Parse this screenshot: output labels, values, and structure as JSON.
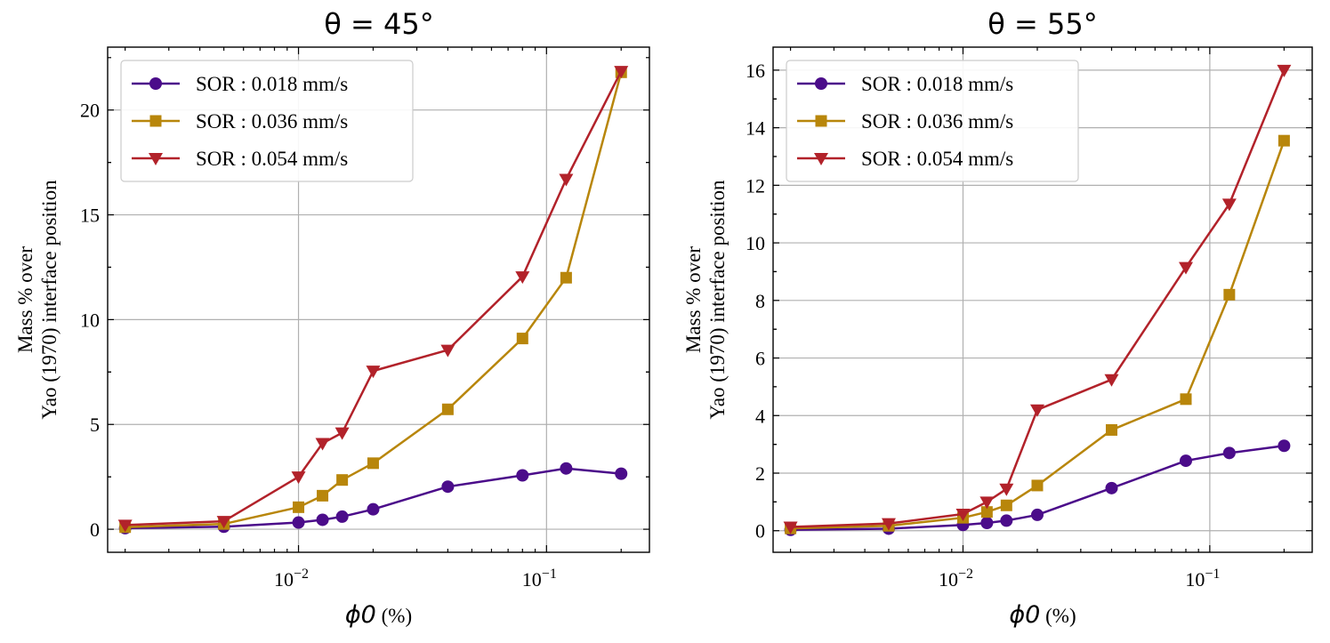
{
  "chart_data": [
    {
      "type": "line",
      "title": "θ = 45°",
      "xlabel": "ϕ0 (%)",
      "ylabel": [
        "Mass % over",
        "Yao (1970) interface position"
      ],
      "xscale": "log",
      "xlim": [
        0.0017,
        0.26
      ],
      "ylim": [
        -1.1,
        23.0
      ],
      "xticks": [
        {
          "value": 0.01,
          "base": "10",
          "exp": "−2"
        },
        {
          "value": 0.1,
          "base": "10",
          "exp": "−1"
        }
      ],
      "yticks": [
        0,
        5,
        10,
        15,
        20
      ],
      "legend_position": "upper-left",
      "x": [
        0.002,
        0.005,
        0.01,
        0.0125,
        0.015,
        0.02,
        0.04,
        0.08,
        0.12,
        0.2
      ],
      "series": [
        {
          "name": "SOR : 0.018 mm/s",
          "color": "#4b0c8a",
          "marker": "circle",
          "values": [
            0.05,
            0.12,
            0.32,
            0.45,
            0.6,
            0.95,
            2.03,
            2.57,
            2.9,
            2.65
          ]
        },
        {
          "name": "SOR : 0.036 mm/s",
          "color": "#b8860b",
          "marker": "square",
          "values": [
            0.1,
            0.25,
            1.05,
            1.6,
            2.35,
            3.15,
            5.72,
            9.1,
            12.0,
            21.8
          ]
        },
        {
          "name": "SOR : 0.054 mm/s",
          "color": "#b2222a",
          "marker": "triangle-down",
          "values": [
            0.2,
            0.38,
            2.5,
            4.1,
            4.6,
            7.55,
            8.55,
            12.05,
            16.7,
            21.85
          ]
        }
      ]
    },
    {
      "type": "line",
      "title": "θ = 55°",
      "xlabel": "ϕ0 (%)",
      "ylabel": [
        "Mass % over",
        "Yao (1970) interface position"
      ],
      "xscale": "log",
      "xlim": [
        0.0017,
        0.26
      ],
      "ylim": [
        -0.75,
        16.8
      ],
      "xticks": [
        {
          "value": 0.01,
          "base": "10",
          "exp": "−2"
        },
        {
          "value": 0.1,
          "base": "10",
          "exp": "−1"
        }
      ],
      "yticks": [
        0,
        2,
        4,
        6,
        8,
        10,
        12,
        14,
        16
      ],
      "legend_position": "upper-left",
      "x": [
        0.002,
        0.005,
        0.01,
        0.0125,
        0.015,
        0.02,
        0.04,
        0.08,
        0.12,
        0.2
      ],
      "series": [
        {
          "name": "SOR : 0.018 mm/s",
          "color": "#4b0c8a",
          "marker": "circle",
          "values": [
            0.03,
            0.07,
            0.2,
            0.27,
            0.35,
            0.55,
            1.48,
            2.43,
            2.7,
            2.95
          ]
        },
        {
          "name": "SOR : 0.036 mm/s",
          "color": "#b8860b",
          "marker": "square",
          "values": [
            0.08,
            0.17,
            0.45,
            0.65,
            0.88,
            1.57,
            3.5,
            4.57,
            8.2,
            13.55
          ]
        },
        {
          "name": "SOR : 0.054 mm/s",
          "color": "#b2222a",
          "marker": "triangle-down",
          "values": [
            0.13,
            0.25,
            0.58,
            1.0,
            1.45,
            4.2,
            5.25,
            9.15,
            11.35,
            16.0
          ]
        }
      ]
    }
  ]
}
